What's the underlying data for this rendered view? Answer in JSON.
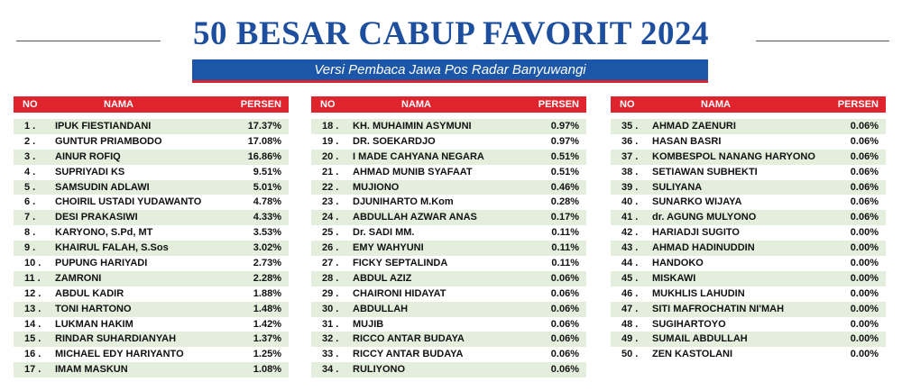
{
  "header": {
    "title": "50 BESAR CABUP FAVORIT 2024",
    "subtitle": "Versi Pembaca Jawa Pos Radar Banyuwangi"
  },
  "tables": [
    {
      "header": [
        "NO",
        "NAMA",
        "PERSEN"
      ],
      "rows": [
        [
          "1 .",
          "IPUK FIESTIANDANI",
          "17.37%"
        ],
        [
          "2 .",
          "GUNTUR PRIAMBODO",
          "17.08%"
        ],
        [
          "3 .",
          "AINUR ROFIQ",
          "16.86%"
        ],
        [
          "4 .",
          "SUPRIYADI KS",
          "9.51%"
        ],
        [
          "5 .",
          "SAMSUDIN ADLAWI",
          "5.01%"
        ],
        [
          "6 .",
          "CHOIRIL USTADI YUDAWANTO",
          "4.78%"
        ],
        [
          "7 .",
          "DESI PRAKASIWI",
          "4.33%"
        ],
        [
          "8 .",
          "KARYONO, S.Pd, MT",
          "3.53%"
        ],
        [
          "9 .",
          "KHAIRUL FALAH, S.Sos",
          "3.02%"
        ],
        [
          "10 .",
          "PUPUNG HARIYADI",
          "2.73%"
        ],
        [
          "11 .",
          "ZAMRONI",
          "2.28%"
        ],
        [
          "12 .",
          "ABDUL KADIR",
          "1.88%"
        ],
        [
          "13 .",
          "TONI HARTONO",
          "1.48%"
        ],
        [
          "14 .",
          "LUKMAN HAKIM",
          "1.42%"
        ],
        [
          "15 .",
          "RINDAR SUHARDIANYAH",
          "1.37%"
        ],
        [
          "16 .",
          "MICHAEL EDY HARIYANTO",
          "1.25%"
        ],
        [
          "17 .",
          "IMAM MASKUN",
          "1.08%"
        ]
      ]
    },
    {
      "header": [
        "NO",
        "NAMA",
        "PERSEN"
      ],
      "rows": [
        [
          "18 .",
          "KH. MUHAIMIN ASYMUNI",
          "0.97%"
        ],
        [
          "19 .",
          "DR. SOEKARDJO",
          "0.97%"
        ],
        [
          "20 .",
          "I MADE CAHYANA NEGARA",
          "0.51%"
        ],
        [
          "21 .",
          "AHMAD MUNIB SYAFAAT",
          "0.51%"
        ],
        [
          "22 .",
          "MUJIONO",
          "0.46%"
        ],
        [
          "23 .",
          "DJUNIHARTO M.Kom",
          "0.28%"
        ],
        [
          "24 .",
          "ABDULLAH AZWAR ANAS",
          "0.17%"
        ],
        [
          "25 .",
          "Dr. SADI MM.",
          "0.11%"
        ],
        [
          "26 .",
          "EMY WAHYUNI",
          "0.11%"
        ],
        [
          "27 .",
          "FICKY SEPTALINDA",
          "0.11%"
        ],
        [
          "28 .",
          "ABDUL AZIZ",
          "0.06%"
        ],
        [
          "29 .",
          "CHAIRONI HIDAYAT",
          "0.06%"
        ],
        [
          "30 .",
          "ABDULLAH",
          "0.06%"
        ],
        [
          "31 .",
          "MUJIB",
          "0.06%"
        ],
        [
          "32 .",
          "RICCO ANTAR BUDAYA",
          "0.06%"
        ],
        [
          "33 .",
          "RICCY ANTAR BUDAYA",
          "0.06%"
        ],
        [
          "34 .",
          "RULIYONO",
          "0.06%"
        ]
      ]
    },
    {
      "header": [
        "NO",
        "NAMA",
        "PERSEN"
      ],
      "rows": [
        [
          "35 .",
          "AHMAD ZAENURI",
          "0.06%"
        ],
        [
          "36 .",
          "HASAN BASRI",
          "0.06%"
        ],
        [
          "37 .",
          "KOMBESPOL NANANG HARYONO",
          "0.06%"
        ],
        [
          "38 .",
          "SETIAWAN SUBHEKTI",
          "0.06%"
        ],
        [
          "39 .",
          "SULIYANA",
          "0.06%"
        ],
        [
          "40 .",
          "SUNARKO WIJAYA",
          "0.06%"
        ],
        [
          "41 .",
          "dr. AGUNG MULYONO",
          "0.06%"
        ],
        [
          "42 .",
          "HARIADJI SUGITO",
          "0.00%"
        ],
        [
          "43 .",
          "AHMAD HADINUDDIN",
          "0.00%"
        ],
        [
          "44 .",
          "HANDOKO",
          "0.00%"
        ],
        [
          "45 .",
          "MISKAWI",
          "0.00%"
        ],
        [
          "46 .",
          "MUKHLIS LAHUDIN",
          "0.00%"
        ],
        [
          "47 .",
          "SITI MAFROCHATIN NI'MAH",
          "0.00%"
        ],
        [
          "48 .",
          "SUGIHARTOYO",
          "0.00%"
        ],
        [
          "49 .",
          "SUMAIL ABDULLAH",
          "0.00%"
        ],
        [
          "50 .",
          "ZEN KASTOLANI",
          "0.00%"
        ]
      ]
    }
  ]
}
